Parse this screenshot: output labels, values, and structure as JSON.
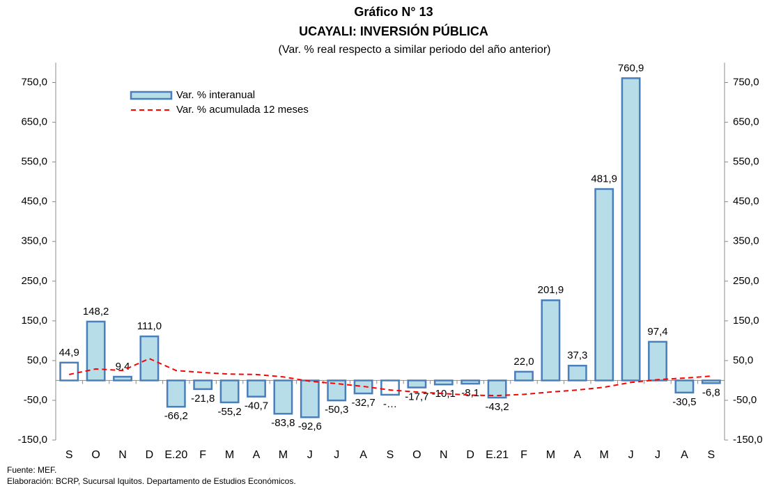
{
  "chart_data": {
    "type": "bar",
    "title": "Gráfico N° 13",
    "title2": "UCAYALI: INVERSIÓN PÚBLICA",
    "subtitle": "(Var. % real respecto a similar periodo del año anterior)",
    "categories": [
      "S",
      "O",
      "N",
      "D",
      "E.20",
      "F",
      "M",
      "A",
      "M",
      "J",
      "J",
      "A",
      "S",
      "O",
      "N",
      "D",
      "E.21",
      "F",
      "M",
      "A",
      "M",
      "J",
      "J",
      "A",
      "S"
    ],
    "series": [
      {
        "name": "Var. % interanual",
        "type": "bar",
        "color": "#b7dee8",
        "border_color": "#4a7ebb",
        "point_colors": [
          "#ffffff",
          "#b7dee8",
          "#b7dee8",
          "#b7dee8",
          "#b7dee8",
          "#b7dee8",
          "#b7dee8",
          "#b7dee8",
          "#b7dee8",
          "#b7dee8",
          "#b7dee8",
          "#b7dee8",
          "#ffffff",
          "#b7dee8",
          "#b7dee8",
          "#b7dee8",
          "#b7dee8",
          "#b7dee8",
          "#b7dee8",
          "#b7dee8",
          "#b7dee8",
          "#b7dee8",
          "#b7dee8",
          "#b7dee8",
          "#b7dee8"
        ],
        "values": [
          44.9,
          148.2,
          9.4,
          111.0,
          -66.2,
          -21.8,
          -55.2,
          -40.7,
          -83.8,
          -92.6,
          -50.3,
          -32.7,
          -36,
          -17.7,
          -10.1,
          -8.1,
          -43.2,
          22.0,
          201.9,
          37.3,
          481.9,
          760.9,
          97.4,
          -30.5,
          -6.8
        ],
        "value_labels": [
          "44,9",
          "148,2",
          "9,4",
          "111,0",
          "-66,2",
          "-21,8",
          "-55,2",
          "-40,7",
          "-83,8",
          "-92,6",
          "-50,3",
          "-32,7",
          "-…",
          "-17,7",
          "-10,1",
          "-8,1",
          "-43,2",
          "22,0",
          "201,9",
          "37,3",
          "481,9",
          "760,9",
          "97,4",
          "-30,5",
          "-6,8"
        ]
      },
      {
        "name": "Var. % acumulada 12 meses",
        "type": "line",
        "color": "#ff0000",
        "values": [
          15,
          29,
          25,
          55,
          25,
          20,
          16,
          15,
          9,
          -2,
          -8,
          -15,
          -24,
          -29,
          -33,
          -37,
          -38,
          -35,
          -29,
          -24,
          -17,
          -5,
          2,
          6,
          11
        ]
      }
    ],
    "ylim": [
      -150,
      800
    ],
    "yticks": [
      {
        "value": -150,
        "label": "-150,0"
      },
      {
        "value": -50,
        "label": "-50,0"
      },
      {
        "value": 50,
        "label": "50,0"
      },
      {
        "value": 150,
        "label": "150,0"
      },
      {
        "value": 250,
        "label": "250,0"
      },
      {
        "value": 350,
        "label": "350,0"
      },
      {
        "value": 450,
        "label": "450,0"
      },
      {
        "value": 550,
        "label": "550,0"
      },
      {
        "value": 650,
        "label": "650,0"
      },
      {
        "value": 750,
        "label": "750,0"
      }
    ],
    "y2lim": [
      -150,
      800
    ],
    "y2ticks": [
      {
        "value": -150,
        "label": "-150,0"
      },
      {
        "value": -50,
        "label": "-50,0"
      },
      {
        "value": 50,
        "label": "50,0"
      },
      {
        "value": 150,
        "label": "150,0"
      },
      {
        "value": 250,
        "label": "250,0"
      },
      {
        "value": 350,
        "label": "350,0"
      },
      {
        "value": 450,
        "label": "450,0"
      },
      {
        "value": 550,
        "label": "550,0"
      },
      {
        "value": 650,
        "label": "650,0"
      },
      {
        "value": 750,
        "label": "750,0"
      }
    ],
    "grid": false,
    "legend_position": "upper-left",
    "source": "Fuente: MEF.",
    "note": "Elaboración: BCRP, Sucursal Iquitos. Departamento de Estudios Económicos."
  }
}
